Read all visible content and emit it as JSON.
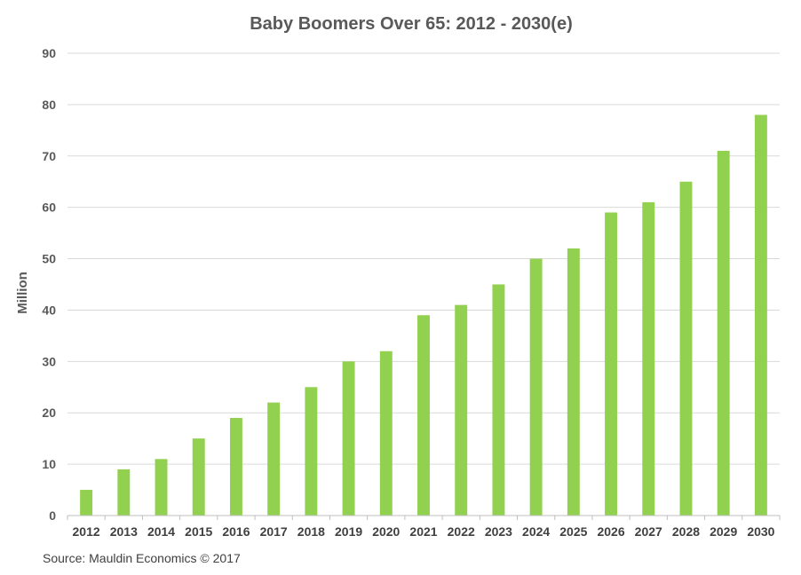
{
  "chart_data": {
    "type": "bar",
    "title": "Baby Boomers Over 65: 2012 - 2030(e)",
    "xlabel": "",
    "ylabel": "Million",
    "categories": [
      "2012",
      "2013",
      "2014",
      "2015",
      "2016",
      "2017",
      "2018",
      "2019",
      "2020",
      "2021",
      "2022",
      "2023",
      "2024",
      "2025",
      "2026",
      "2027",
      "2028",
      "2029",
      "2030"
    ],
    "values": [
      5,
      9,
      11,
      15,
      19,
      22,
      25,
      30,
      32,
      39,
      41,
      45,
      50,
      52,
      59,
      61,
      65,
      71,
      78
    ],
    "ylim": [
      0,
      90
    ],
    "yticks": [
      "0",
      "10",
      "20",
      "30",
      "40",
      "50",
      "60",
      "70",
      "80",
      "90"
    ],
    "grid": true,
    "legend": "none",
    "bar_color": "#92d050",
    "source": "Source: Mauldin Economics © 2017"
  }
}
